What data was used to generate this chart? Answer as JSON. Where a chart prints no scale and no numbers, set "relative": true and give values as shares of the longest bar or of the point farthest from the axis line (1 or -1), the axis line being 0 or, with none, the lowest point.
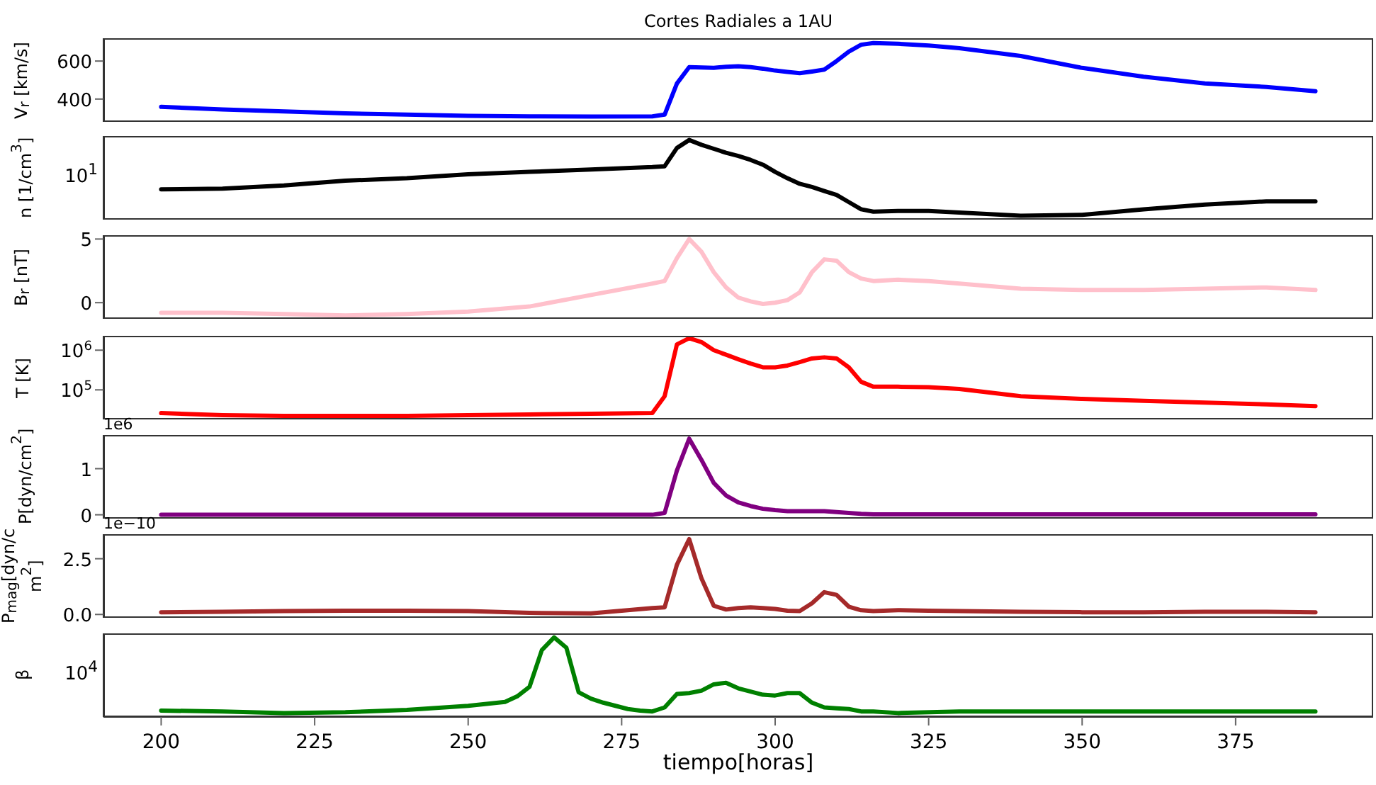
{
  "chart_data": [
    {
      "type": "line",
      "title": "Cortes Radiales a 1AU",
      "ylabel": "V$_{r}$ [km/s]",
      "x": [
        200,
        210,
        220,
        230,
        240,
        250,
        260,
        270,
        280,
        282,
        284,
        286,
        288,
        290,
        292,
        294,
        296,
        298,
        300,
        302,
        304,
        306,
        308,
        310,
        312,
        314,
        316,
        320,
        325,
        330,
        340,
        350,
        360,
        370,
        380,
        388
      ],
      "xlim": [
        190.6,
        397.4
      ],
      "ylim": [
        280,
        720
      ],
      "yticks": [
        400,
        600
      ],
      "tick_labels": "y",
      "series": [
        {
          "color": "#0000ff",
          "values": [
            359,
            345,
            335,
            325,
            318,
            312,
            309,
            308,
            309,
            318,
            482,
            568,
            566,
            564,
            570,
            573,
            568,
            560,
            550,
            543,
            536,
            545,
            555,
            600,
            650,
            686,
            695,
            691,
            682,
            668,
            627,
            564,
            518,
            482,
            464,
            441
          ]
        }
      ]
    },
    {
      "type": "line",
      "ylabel": "n [1/cm$^{3}$]",
      "relative": true,
      "annotations": [
        "10$^{1}$"
      ],
      "x": [
        200,
        210,
        220,
        230,
        240,
        250,
        260,
        270,
        280,
        282,
        284,
        286,
        288,
        290,
        292,
        294,
        296,
        298,
        300,
        302,
        304,
        306,
        308,
        310,
        312,
        314,
        316,
        320,
        325,
        330,
        340,
        350,
        360,
        370,
        380,
        388
      ],
      "xlim": [
        190.6,
        397.4
      ],
      "tick_labels": false,
      "series": [
        {
          "color": "#000000",
          "values": [
            0.38,
            0.39,
            0.43,
            0.49,
            0.52,
            0.57,
            0.6,
            0.63,
            0.66,
            0.67,
            0.9,
            1,
            0.94,
            0.89,
            0.84,
            0.8,
            0.75,
            0.69,
            0.6,
            0.52,
            0.45,
            0.41,
            0.36,
            0.31,
            0.22,
            0.13,
            0.1,
            0.11,
            0.11,
            0.09,
            0.05,
            0.06,
            0.13,
            0.19,
            0.23,
            0.23
          ]
        }
      ]
    },
    {
      "type": "line",
      "ylabel": "B$_{r}$ [nT]",
      "x": [
        200,
        210,
        220,
        230,
        240,
        250,
        260,
        270,
        280,
        282,
        284,
        286,
        288,
        290,
        292,
        294,
        296,
        298,
        300,
        302,
        304,
        306,
        308,
        310,
        312,
        314,
        316,
        320,
        325,
        330,
        340,
        350,
        360,
        370,
        380,
        388
      ],
      "xlim": [
        190.6,
        397.4
      ],
      "ylim": [
        -1.27,
        5.3
      ],
      "yticks": [
        0,
        5
      ],
      "tick_labels": "y",
      "series": [
        {
          "color": "#ffc0cb",
          "values": [
            -0.8,
            -0.8,
            -0.9,
            -1.0,
            -0.9,
            -0.7,
            -0.3,
            0.6,
            1.5,
            1.7,
            3.5,
            5.0,
            4.0,
            2.4,
            1.2,
            0.4,
            0.1,
            -0.1,
            0.0,
            0.2,
            0.8,
            2.4,
            3.4,
            3.3,
            2.4,
            1.9,
            1.7,
            1.8,
            1.7,
            1.5,
            1.1,
            1.0,
            1.0,
            1.1,
            1.2,
            1.0
          ]
        }
      ]
    },
    {
      "type": "line",
      "ylabel": "T [K]",
      "log": true,
      "x": [
        200,
        210,
        220,
        230,
        240,
        250,
        260,
        270,
        280,
        282,
        284,
        286,
        288,
        290,
        292,
        294,
        296,
        298,
        300,
        302,
        304,
        306,
        308,
        310,
        312,
        314,
        316,
        320,
        325,
        330,
        340,
        350,
        360,
        370,
        380,
        388
      ],
      "xlim": [
        190.6,
        397.4
      ],
      "ylim": [
        18000,
        2300000
      ],
      "yticks": [
        {
          "value": 100000,
          "label": "10$^{5}$"
        },
        {
          "value": 1000000,
          "label": "10$^{6}$"
        }
      ],
      "tick_labels": "y",
      "series": [
        {
          "color": "#ff0000",
          "values": [
            26000,
            23000,
            22000,
            22000,
            22000,
            23000,
            24000,
            25000,
            26000,
            69000,
            1400000,
            2000000,
            1600000,
            1000000,
            770000,
            590000,
            460000,
            370000,
            370000,
            410000,
            500000,
            620000,
            660000,
            620000,
            370000,
            160000,
            120000,
            120000,
            117000,
            105000,
            69000,
            59000,
            53000,
            48000,
            43000,
            39000
          ]
        }
      ]
    },
    {
      "type": "line",
      "ylabel": "P[dyn/cm$^{2}$]",
      "annotations": [
        "1e6"
      ],
      "x": [
        200,
        210,
        220,
        230,
        240,
        250,
        260,
        270,
        280,
        282,
        284,
        286,
        288,
        290,
        292,
        294,
        296,
        298,
        300,
        302,
        304,
        306,
        308,
        310,
        312,
        314,
        316,
        320,
        325,
        330,
        340,
        350,
        360,
        370,
        380,
        388
      ],
      "xlim": [
        190.6,
        397.4
      ],
      "ylim": [
        -0.083,
        1.73
      ],
      "yticks": [
        0,
        1
      ],
      "tick_labels": "y",
      "series": [
        {
          "color": "#800080",
          "values": [
            0,
            0,
            0,
            0,
            0,
            0,
            0,
            0,
            0,
            0.04,
            0.96,
            1.65,
            1.19,
            0.69,
            0.42,
            0.27,
            0.19,
            0.13,
            0.1,
            0.08,
            0.08,
            0.08,
            0.08,
            0.06,
            0.04,
            0.02,
            0.01,
            0.01,
            0.01,
            0.01,
            0.01,
            0.01,
            0.01,
            0.01,
            0.01,
            0.01
          ]
        }
      ]
    },
    {
      "type": "line",
      "ylabel": "P$_{mag}$[dyn/cm$^{2}$]",
      "annotations": [
        "1e−10"
      ],
      "x": [
        200,
        210,
        220,
        230,
        240,
        250,
        260,
        270,
        280,
        282,
        284,
        286,
        288,
        290,
        292,
        294,
        296,
        298,
        300,
        302,
        304,
        306,
        308,
        310,
        312,
        314,
        316,
        320,
        325,
        330,
        340,
        350,
        360,
        370,
        380,
        388
      ],
      "xlim": [
        190.6,
        397.4
      ],
      "ylim": [
        -0.15,
        3.6
      ],
      "yticks": [
        {
          "value": 0,
          "label": "0.0"
        },
        {
          "value": 2.5,
          "label": "2.5"
        }
      ],
      "tick_labels": "y",
      "series": [
        {
          "color": "#a52a2a",
          "values": [
            0.1,
            0.12,
            0.15,
            0.17,
            0.17,
            0.15,
            0.07,
            0.05,
            0.29,
            0.32,
            2.23,
            3.38,
            1.62,
            0.39,
            0.22,
            0.29,
            0.32,
            0.29,
            0.25,
            0.17,
            0.15,
            0.5,
            1.0,
            0.88,
            0.35,
            0.19,
            0.15,
            0.19,
            0.17,
            0.15,
            0.12,
            0.1,
            0.1,
            0.12,
            0.12,
            0.1
          ]
        }
      ]
    },
    {
      "type": "line",
      "ylabel": "β",
      "xlabel": "tiempo[horas]",
      "relative": true,
      "annotations": [
        "10$^{4}$"
      ],
      "x": [
        200,
        210,
        220,
        230,
        240,
        250,
        256,
        258,
        260,
        262,
        264,
        266,
        268,
        270,
        272,
        274,
        276,
        278,
        280,
        282,
        284,
        286,
        288,
        290,
        292,
        294,
        296,
        298,
        300,
        302,
        304,
        306,
        308,
        310,
        312,
        314,
        316,
        320,
        330,
        335,
        350,
        360,
        370,
        380,
        388
      ],
      "xlim": [
        190.6,
        397.4
      ],
      "xticks": [
        200,
        225,
        250,
        275,
        300,
        325,
        350,
        375
      ],
      "tick_labels": "x",
      "series": [
        {
          "color": "#008000",
          "values": [
            0.08,
            0.07,
            0.05,
            0.06,
            0.09,
            0.14,
            0.19,
            0.26,
            0.38,
            0.84,
            1,
            0.87,
            0.31,
            0.23,
            0.18,
            0.14,
            0.1,
            0.08,
            0.07,
            0.12,
            0.29,
            0.3,
            0.33,
            0.41,
            0.43,
            0.36,
            0.32,
            0.28,
            0.27,
            0.3,
            0.3,
            0.18,
            0.12,
            0.11,
            0.1,
            0.07,
            0.07,
            0.05,
            0.07,
            0.07,
            0.07,
            0.07,
            0.07,
            0.07,
            0.07
          ]
        }
      ]
    }
  ]
}
